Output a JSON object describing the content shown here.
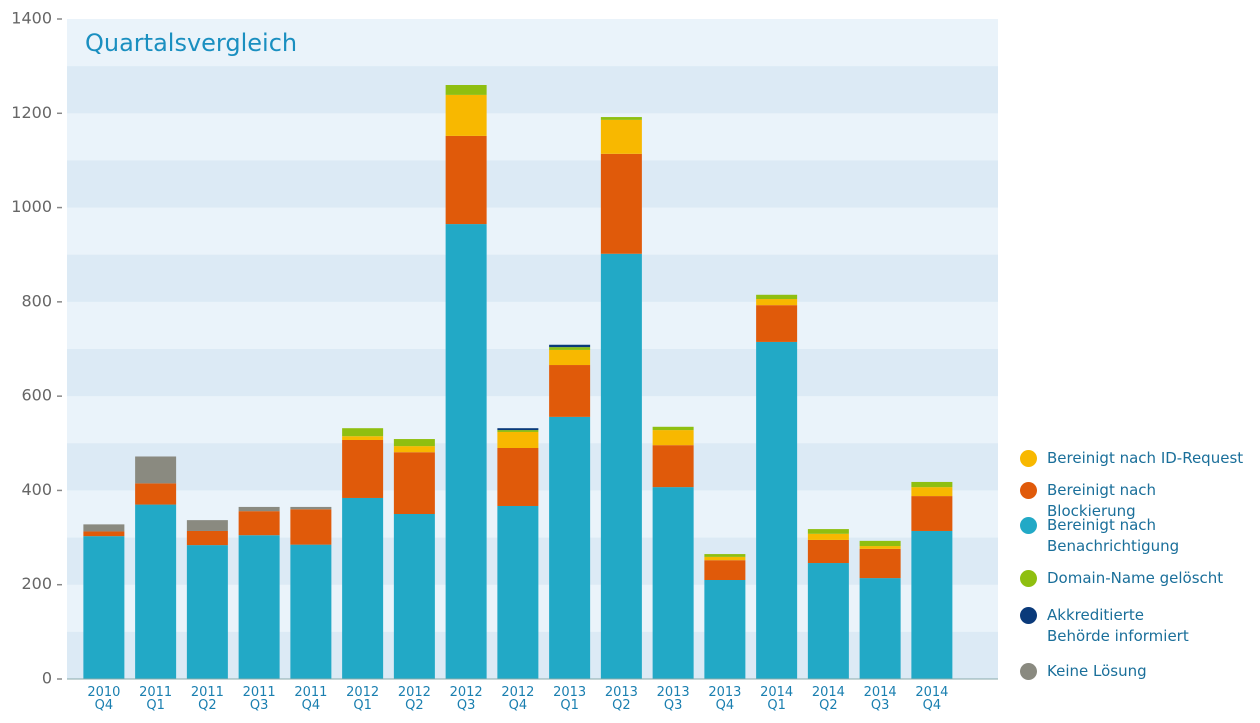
{
  "chart_data": {
    "type": "stacked-bar",
    "title": "Quartalsvergleich",
    "categories": [
      "2010 Q4",
      "2011 Q1",
      "2011 Q2",
      "2011 Q3",
      "2011 Q4",
      "2012 Q1",
      "2012 Q2",
      "2012 Q3",
      "2012 Q4",
      "2013 Q1",
      "2013 Q2",
      "2013 Q3",
      "2013 Q4",
      "2014 Q1",
      "2014 Q2",
      "2014 Q3",
      "2014 Q4"
    ],
    "series": [
      {
        "name": "Bereinigt nach ID-Request",
        "color": "#f8b800",
        "values": [
          0,
          0,
          0,
          0,
          0,
          8,
          13,
          87,
          34,
          32,
          72,
          32,
          7,
          13,
          13,
          6,
          19
        ]
      },
      {
        "name": "Bereinigt nach Blockierung",
        "color": "#e05a0a",
        "values": [
          10,
          45,
          30,
          51,
          75,
          123,
          131,
          187,
          123,
          110,
          212,
          89,
          42,
          78,
          49,
          62,
          74
        ]
      },
      {
        "name": "Bereinigt nach Benachrichtigung",
        "color": "#22a9c6",
        "values": [
          303,
          370,
          284,
          305,
          285,
          384,
          350,
          965,
          367,
          556,
          902,
          407,
          210,
          715,
          246,
          214,
          314
        ]
      },
      {
        "name": "Domain-Name gelöscht",
        "color": "#8fbf10",
        "values": [
          0,
          0,
          0,
          0,
          0,
          17,
          15,
          21,
          4,
          6,
          6,
          7,
          6,
          9,
          10,
          11,
          11
        ]
      },
      {
        "name": "Akkreditierte Behörde informiert",
        "color": "#0a3a7a",
        "values": [
          0,
          0,
          0,
          0,
          0,
          0,
          0,
          0,
          4,
          5,
          0,
          0,
          0,
          0,
          0,
          0,
          0
        ]
      },
      {
        "name": "Keine Lösung",
        "color": "#8a8a80",
        "values": [
          15,
          57,
          23,
          9,
          5,
          0,
          0,
          0,
          0,
          0,
          0,
          0,
          0,
          0,
          0,
          0,
          0
        ]
      }
    ],
    "ylim": [
      0,
      1400
    ],
    "yticks": [
      0,
      200,
      400,
      600,
      800,
      1000,
      1200,
      1400
    ]
  }
}
